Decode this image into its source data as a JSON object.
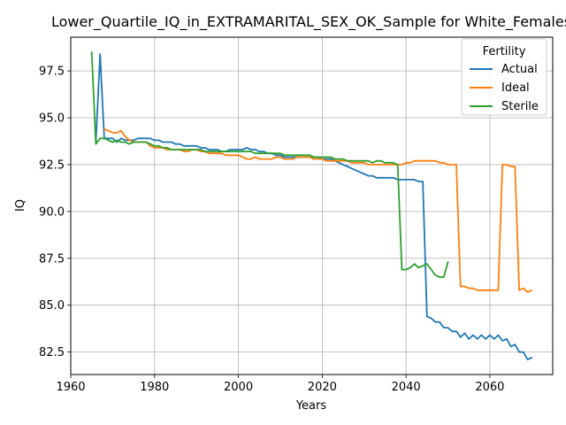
{
  "chart_data": {
    "type": "line",
    "title": "Lower_Quartile_IQ_in_EXTRAMARITAL_SEX_OK_Sample for White_Females",
    "xlabel": "Years",
    "ylabel": "IQ",
    "xlim": [
      1960,
      2075
    ],
    "ylim": [
      81.3,
      99.3
    ],
    "xticks": [
      1960,
      1980,
      2000,
      2020,
      2040,
      2060
    ],
    "yticks": [
      82.5,
      85.0,
      87.5,
      90.0,
      92.5,
      95.0,
      97.5
    ],
    "ytick_labels": [
      "82.5",
      "85.0",
      "87.5",
      "90.0",
      "92.5",
      "95.0",
      "97.5"
    ],
    "grid": true,
    "legend": {
      "title": "Fertility",
      "position": "top-right"
    },
    "series": [
      {
        "name": "Actual",
        "color": "#1f77b4",
        "x": [
          1966,
          1967,
          1968,
          1969,
          1970,
          1971,
          1972,
          1973,
          1974,
          1975,
          1976,
          1977,
          1978,
          1979,
          1980,
          1981,
          1982,
          1983,
          1984,
          1985,
          1986,
          1987,
          1988,
          1989,
          1990,
          1991,
          1992,
          1993,
          1994,
          1995,
          1996,
          1997,
          1998,
          1999,
          2000,
          2001,
          2002,
          2003,
          2004,
          2005,
          2006,
          2007,
          2008,
          2009,
          2010,
          2011,
          2012,
          2013,
          2014,
          2015,
          2016,
          2017,
          2018,
          2019,
          2020,
          2021,
          2022,
          2023,
          2024,
          2025,
          2026,
          2027,
          2028,
          2029,
          2030,
          2031,
          2032,
          2033,
          2034,
          2035,
          2036,
          2037,
          2038,
          2039,
          2040,
          2041,
          2042,
          2043,
          2044,
          2045,
          2046,
          2047,
          2048,
          2049,
          2050,
          2051,
          2052,
          2053,
          2054,
          2055,
          2056,
          2057,
          2058,
          2059,
          2060,
          2061,
          2062,
          2063,
          2064,
          2065,
          2066,
          2067,
          2068,
          2069,
          2070
        ],
        "y": [
          93.7,
          98.4,
          93.9,
          93.9,
          93.9,
          93.7,
          93.9,
          93.8,
          93.8,
          93.8,
          93.9,
          93.9,
          93.9,
          93.9,
          93.8,
          93.8,
          93.7,
          93.7,
          93.7,
          93.6,
          93.6,
          93.5,
          93.5,
          93.5,
          93.5,
          93.4,
          93.4,
          93.3,
          93.3,
          93.3,
          93.2,
          93.2,
          93.3,
          93.3,
          93.3,
          93.3,
          93.4,
          93.3,
          93.3,
          93.2,
          93.2,
          93.1,
          93.1,
          93.0,
          93.0,
          92.9,
          92.9,
          92.9,
          92.9,
          92.9,
          92.9,
          92.9,
          92.9,
          92.9,
          92.8,
          92.8,
          92.8,
          92.7,
          92.6,
          92.5,
          92.4,
          92.3,
          92.2,
          92.1,
          92.0,
          91.9,
          91.9,
          91.8,
          91.8,
          91.8,
          91.8,
          91.8,
          91.7,
          91.7,
          91.7,
          91.7,
          91.7,
          91.6,
          91.6,
          84.4,
          84.3,
          84.1,
          84.1,
          83.8,
          83.8,
          83.6,
          83.6,
          83.3,
          83.5,
          83.2,
          83.4,
          83.2,
          83.4,
          83.2,
          83.4,
          83.2,
          83.4,
          83.1,
          83.2,
          82.8,
          82.9,
          82.5,
          82.5,
          82.1,
          82.2
        ]
      },
      {
        "name": "Ideal",
        "color": "#ff7f0e",
        "x": [
          1968,
          1969,
          1970,
          1971,
          1972,
          1973,
          1974,
          1975,
          1976,
          1977,
          1978,
          1979,
          1980,
          1981,
          1982,
          1983,
          1984,
          1985,
          1986,
          1987,
          1988,
          1989,
          1990,
          1991,
          1992,
          1993,
          1994,
          1995,
          1996,
          1997,
          1998,
          1999,
          2000,
          2001,
          2002,
          2003,
          2004,
          2005,
          2006,
          2007,
          2008,
          2009,
          2010,
          2011,
          2012,
          2013,
          2014,
          2015,
          2016,
          2017,
          2018,
          2019,
          2020,
          2021,
          2022,
          2023,
          2024,
          2025,
          2026,
          2027,
          2028,
          2029,
          2030,
          2031,
          2032,
          2033,
          2034,
          2035,
          2036,
          2037,
          2038,
          2039,
          2040,
          2041,
          2042,
          2043,
          2044,
          2045,
          2046,
          2047,
          2048,
          2049,
          2050,
          2051,
          2052,
          2053,
          2054,
          2055,
          2056,
          2057,
          2058,
          2059,
          2060,
          2061,
          2062,
          2063,
          2064,
          2065,
          2066,
          2067,
          2068,
          2069,
          2070
        ],
        "y": [
          94.4,
          94.3,
          94.2,
          94.2,
          94.3,
          94.0,
          93.8,
          93.7,
          93.7,
          93.7,
          93.7,
          93.5,
          93.4,
          93.4,
          93.4,
          93.3,
          93.3,
          93.3,
          93.3,
          93.2,
          93.2,
          93.3,
          93.3,
          93.2,
          93.2,
          93.1,
          93.1,
          93.1,
          93.1,
          93.0,
          93.0,
          93.0,
          93.0,
          92.9,
          92.8,
          92.8,
          92.9,
          92.8,
          92.8,
          92.8,
          92.8,
          92.9,
          92.9,
          92.8,
          92.8,
          92.8,
          92.9,
          92.9,
          92.9,
          92.9,
          92.8,
          92.8,
          92.8,
          92.7,
          92.7,
          92.7,
          92.7,
          92.7,
          92.7,
          92.6,
          92.6,
          92.6,
          92.6,
          92.5,
          92.5,
          92.5,
          92.5,
          92.5,
          92.5,
          92.5,
          92.5,
          92.5,
          92.6,
          92.6,
          92.7,
          92.7,
          92.7,
          92.7,
          92.7,
          92.7,
          92.6,
          92.6,
          92.5,
          92.5,
          92.5,
          86.0,
          86.0,
          85.9,
          85.9,
          85.8,
          85.8,
          85.8,
          85.8,
          85.8,
          85.8,
          92.5,
          92.5,
          92.4,
          92.4,
          85.8,
          85.9,
          85.7,
          85.8
        ]
      },
      {
        "name": "Sterile",
        "color": "#2ca02c",
        "x": [
          1965,
          1966,
          1967,
          1968,
          1969,
          1970,
          1971,
          1972,
          1973,
          1974,
          1975,
          1976,
          1977,
          1978,
          1979,
          1980,
          1981,
          1982,
          1983,
          1984,
          1985,
          1986,
          1987,
          1988,
          1989,
          1990,
          1991,
          1992,
          1993,
          1994,
          1995,
          1996,
          1997,
          1998,
          1999,
          2000,
          2001,
          2002,
          2003,
          2004,
          2005,
          2006,
          2007,
          2008,
          2009,
          2010,
          2011,
          2012,
          2013,
          2014,
          2015,
          2016,
          2017,
          2018,
          2019,
          2020,
          2021,
          2022,
          2023,
          2024,
          2025,
          2026,
          2027,
          2028,
          2029,
          2030,
          2031,
          2032,
          2033,
          2034,
          2035,
          2036,
          2037,
          2038,
          2039,
          2040,
          2041,
          2042,
          2043,
          2044,
          2045,
          2046,
          2047,
          2048,
          2049,
          2050
        ],
        "y": [
          98.5,
          93.6,
          93.9,
          93.9,
          93.8,
          93.7,
          93.8,
          93.7,
          93.7,
          93.6,
          93.7,
          93.7,
          93.7,
          93.7,
          93.6,
          93.5,
          93.5,
          93.4,
          93.4,
          93.3,
          93.3,
          93.3,
          93.3,
          93.3,
          93.3,
          93.3,
          93.3,
          93.2,
          93.2,
          93.2,
          93.2,
          93.2,
          93.2,
          93.2,
          93.2,
          93.2,
          93.2,
          93.2,
          93.2,
          93.1,
          93.1,
          93.1,
          93.1,
          93.1,
          93.1,
          93.1,
          93.0,
          93.0,
          93.0,
          93.0,
          93.0,
          93.0,
          93.0,
          92.9,
          92.9,
          92.9,
          92.9,
          92.9,
          92.8,
          92.8,
          92.8,
          92.7,
          92.7,
          92.7,
          92.7,
          92.7,
          92.7,
          92.6,
          92.7,
          92.7,
          92.6,
          92.6,
          92.6,
          92.5,
          86.9,
          86.9,
          87.0,
          87.2,
          87.0,
          87.1,
          87.2,
          86.9,
          86.6,
          86.5,
          86.5,
          87.3
        ]
      }
    ]
  }
}
